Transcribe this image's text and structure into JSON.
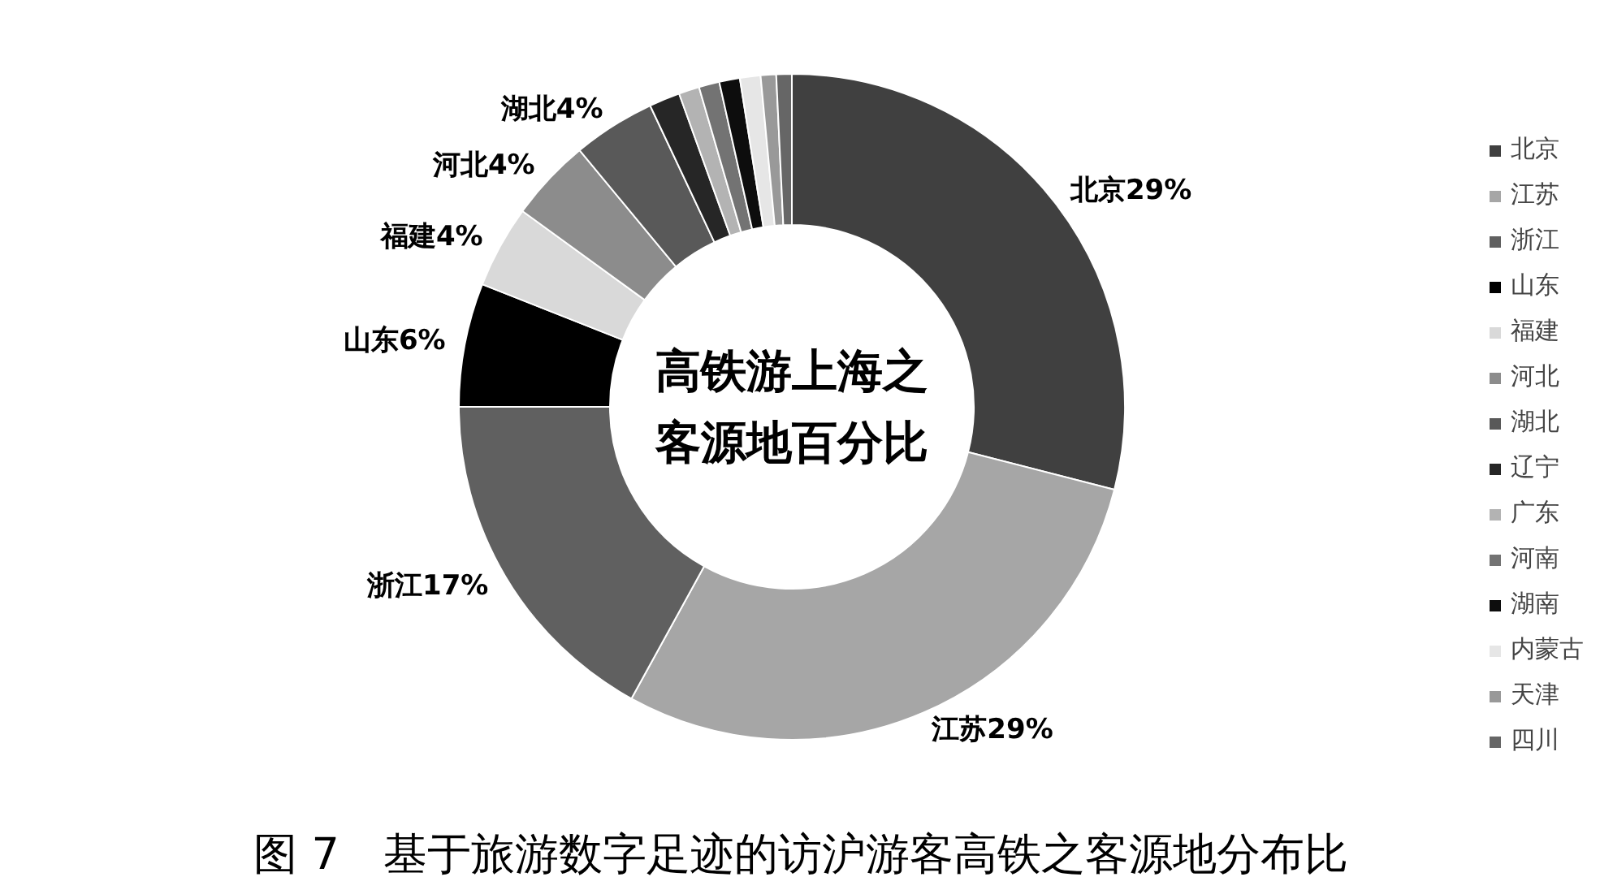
{
  "chart_data": {
    "type": "donut",
    "title": "高铁游上海之客源地百分比",
    "categories": [
      "北京",
      "江苏",
      "浙江",
      "山东",
      "福建",
      "河北",
      "湖北",
      "辽宁",
      "广东",
      "河南",
      "湖南",
      "内蒙古",
      "天津",
      "四川"
    ],
    "values": [
      29,
      29,
      17,
      6,
      4,
      4,
      4,
      1.5,
      1,
      1,
      1,
      1,
      0.75,
      0.75
    ],
    "value_labels": [
      "29%",
      "29%",
      "17%",
      "6%",
      "4%",
      "4%",
      "4%",
      null,
      null,
      null,
      null,
      null,
      null,
      null
    ],
    "colors": [
      "#404040",
      "#a6a6a6",
      "#606060",
      "#000000",
      "#d9d9d9",
      "#8c8c8c",
      "#595959",
      "#262626",
      "#b3b3b3",
      "#737373",
      "#0d0d0d",
      "#e6e6e6",
      "#999999",
      "#666666"
    ],
    "legend": "right",
    "annotations": [
      "图 7　基于旅游数字足迹的访沪游客高铁之客源地分布比"
    ]
  }
}
